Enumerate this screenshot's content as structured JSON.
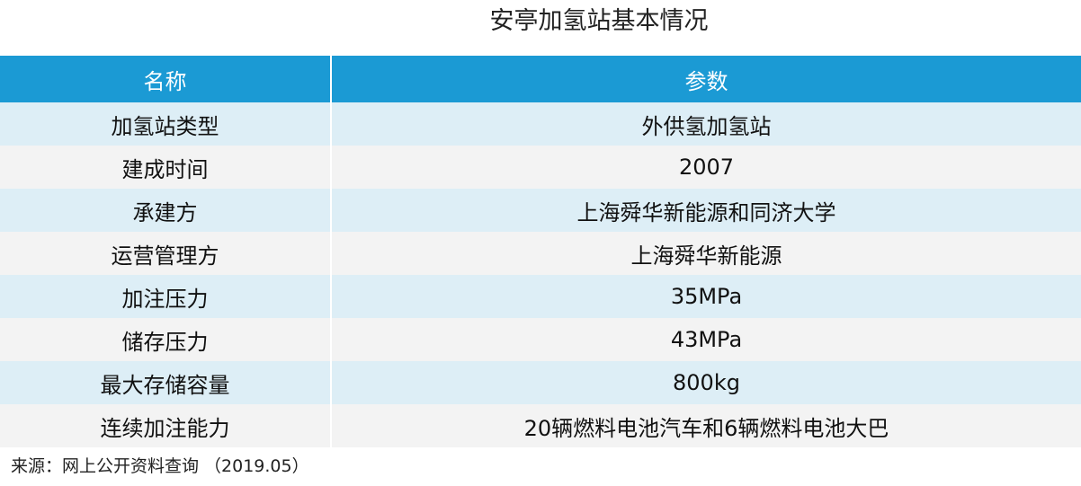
{
  "title": "安亭加氢站基本情况",
  "table": {
    "headers": [
      "名称",
      "参数"
    ],
    "rows": [
      {
        "name": "加氢站类型",
        "value": "外供氢加氢站"
      },
      {
        "name": "建成时间",
        "value": "2007"
      },
      {
        "name": "承建方",
        "value": "上海舜华新能源和同济大学"
      },
      {
        "name": "运营管理方",
        "value": "上海舜华新能源"
      },
      {
        "name": "加注压力",
        "value": "35MPa"
      },
      {
        "name": "储存压力",
        "value": "43MPa"
      },
      {
        "name": "最大存储容量",
        "value": "800kg"
      },
      {
        "name": "连续加注能力",
        "value": "20辆燃料电池汽车和6辆燃料电池大巴"
      }
    ]
  },
  "source": "来源：网上公开资料查询 （2019.05）"
}
